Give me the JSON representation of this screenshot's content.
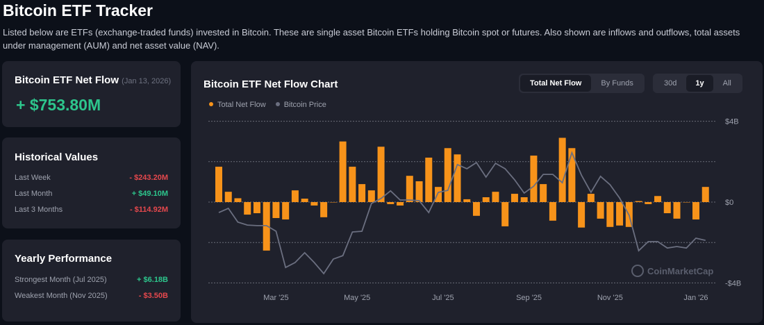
{
  "page": {
    "title": "Bitcoin ETF Tracker",
    "description": "Listed below are ETFs (exchange-traded funds) invested in Bitcoin. These are single asset Bitcoin ETFs holding Bitcoin spot or futures. Also shown are inflows and outflows, total assets under management (AUM) and net asset value (NAV)."
  },
  "netflow": {
    "title": "Bitcoin ETF Net Flow",
    "date": "(Jan 13, 2026)",
    "value": "+ $753.80M"
  },
  "historical": {
    "title": "Historical Values",
    "rows": [
      {
        "label": "Last Week",
        "value": "- $243.20M",
        "sign": "neg"
      },
      {
        "label": "Last Month",
        "value": "+ $49.10M",
        "sign": "pos"
      },
      {
        "label": "Last 3 Months",
        "value": "- $114.92M",
        "sign": "neg"
      }
    ]
  },
  "yearly": {
    "title": "Yearly Performance",
    "rows": [
      {
        "label": "Strongest Month (Jul 2025)",
        "value": "+ $6.18B",
        "sign": "pos"
      },
      {
        "label": "Weakest Month (Nov 2025)",
        "value": "- $3.50B",
        "sign": "neg"
      }
    ]
  },
  "chart_panel": {
    "title": "Bitcoin ETF Net Flow Chart",
    "view_tabs": [
      "Total Net Flow",
      "By Funds"
    ],
    "view_selected": "Total Net Flow",
    "range_tabs": [
      "30d",
      "1y",
      "All"
    ],
    "range_selected": "1y",
    "watermark": "CoinMarketCap"
  },
  "colors": {
    "flow": "#f7931a",
    "price": "#6b6f80",
    "positive": "#2dc58c",
    "negative": "#e5484d"
  },
  "chart_data": {
    "type": "bar",
    "series": [
      {
        "name": "Total Net Flow",
        "type": "bar",
        "unit": "USD billions",
        "values": [
          1.75,
          0.51,
          0.19,
          -0.62,
          -0.55,
          -2.4,
          -0.79,
          -0.86,
          0.58,
          0.17,
          -0.17,
          -0.75,
          0,
          3.0,
          1.75,
          0.89,
          0.58,
          2.74,
          -0.1,
          -0.17,
          1.3,
          1.03,
          2.2,
          0.75,
          2.67,
          2.36,
          0.14,
          -0.68,
          0.24,
          0.51,
          -1.2,
          0.41,
          0.24,
          2.3,
          0.89,
          -0.92,
          3.18,
          2.67,
          -1.26,
          0.41,
          -0.82,
          -1.23,
          -1.16,
          -1.23,
          0.05,
          -0.1,
          0.3,
          -0.55,
          -0.82,
          0,
          -0.86,
          0.75
        ]
      },
      {
        "name": "Bitcoin Price",
        "type": "line",
        "unit": "USD (approx.)",
        "values": [
          100800,
          102500,
          96900,
          95700,
          95500,
          95500,
          93200,
          78500,
          80500,
          84500,
          80500,
          76000,
          81900,
          83300,
          92900,
          93200,
          104500,
          106500,
          109600,
          105900,
          105900,
          105600,
          100800,
          109000,
          109800,
          120300,
          118600,
          121100,
          115200,
          120800,
          118600,
          114100,
          108700,
          111500,
          116300,
          116300,
          112900,
          125100,
          116000,
          109000,
          115500,
          112100,
          106700,
          99700,
          85300,
          89000,
          89000,
          86400,
          87000,
          86400,
          90400,
          89500
        ]
      }
    ],
    "x_ticks": [
      {
        "label": "Mar '25",
        "index": 6
      },
      {
        "label": "May '25",
        "index": 14.5
      },
      {
        "label": "Jul '25",
        "index": 23.5
      },
      {
        "label": "Sep '25",
        "index": 32.5
      },
      {
        "label": "Nov '25",
        "index": 41
      },
      {
        "label": "Jan '26",
        "index": 50
      }
    ],
    "y_ticks": [
      {
        "label": "$4B",
        "value": 4
      },
      {
        "label": "$0",
        "value": 0
      },
      {
        "label": "-$4B",
        "value": -4
      }
    ],
    "ylim": [
      -4,
      4
    ],
    "grid": true,
    "legend": "top-left"
  }
}
